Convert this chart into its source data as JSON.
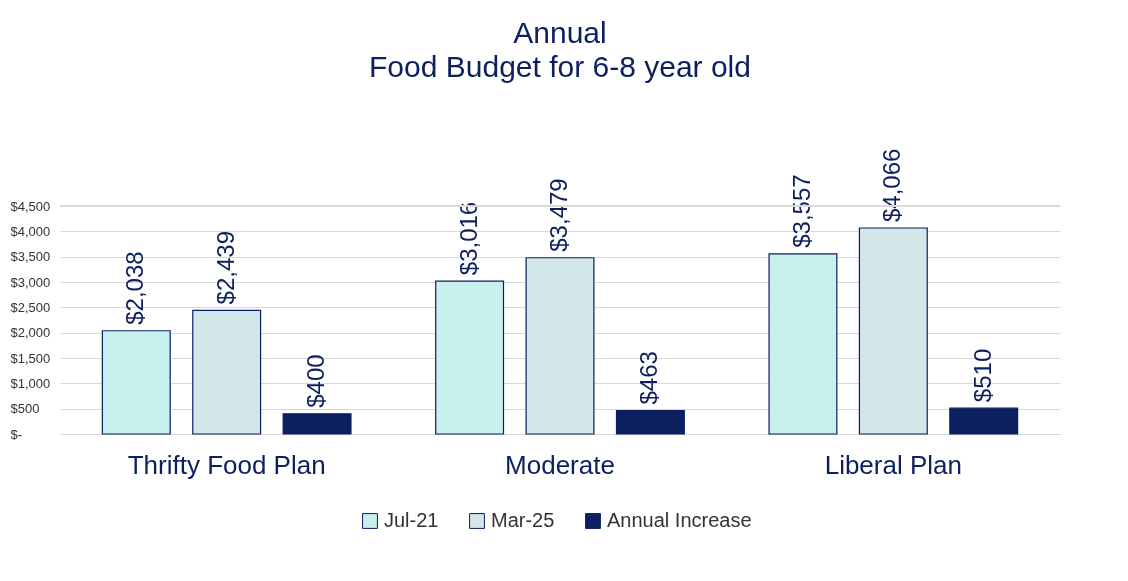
{
  "chart_data": {
    "type": "bar",
    "title": "Annual",
    "subtitle": "Food Budget for 6-8 year old",
    "categories": [
      "Thrifty Food Plan",
      "Moderate",
      "Liberal Plan"
    ],
    "series": [
      {
        "name": "Jul-21",
        "color": "#c8f0ee",
        "values": [
          2038,
          3016,
          3557
        ],
        "value_labels": [
          "$2,038",
          "$3,016",
          "$3,557"
        ]
      },
      {
        "name": "Mar-25",
        "color": "#d3e6e8",
        "values": [
          2439,
          3479,
          4066
        ],
        "value_labels": [
          "$2,439",
          "$3,479",
          "$4,066"
        ]
      },
      {
        "name": "Annual Increase",
        "color": "#0c1f5e",
        "values": [
          400,
          463,
          510
        ],
        "value_labels": [
          "$400",
          "$463",
          "$510"
        ]
      }
    ],
    "ylim": [
      0,
      4500
    ],
    "yticks": [
      {
        "value": 0,
        "label": "$-"
      },
      {
        "value": 500,
        "label": "$500"
      },
      {
        "value": 1000,
        "label": "$1,000"
      },
      {
        "value": 1500,
        "label": "$1,500"
      },
      {
        "value": 2000,
        "label": "$2,000"
      },
      {
        "value": 2500,
        "label": "$2,500"
      },
      {
        "value": 3000,
        "label": "$3,000"
      },
      {
        "value": 3500,
        "label": "$3,500"
      },
      {
        "value": 4000,
        "label": "$4,000"
      },
      {
        "value": 4500,
        "label": "$4,500"
      }
    ],
    "grid": "y",
    "legend": "bottom"
  }
}
